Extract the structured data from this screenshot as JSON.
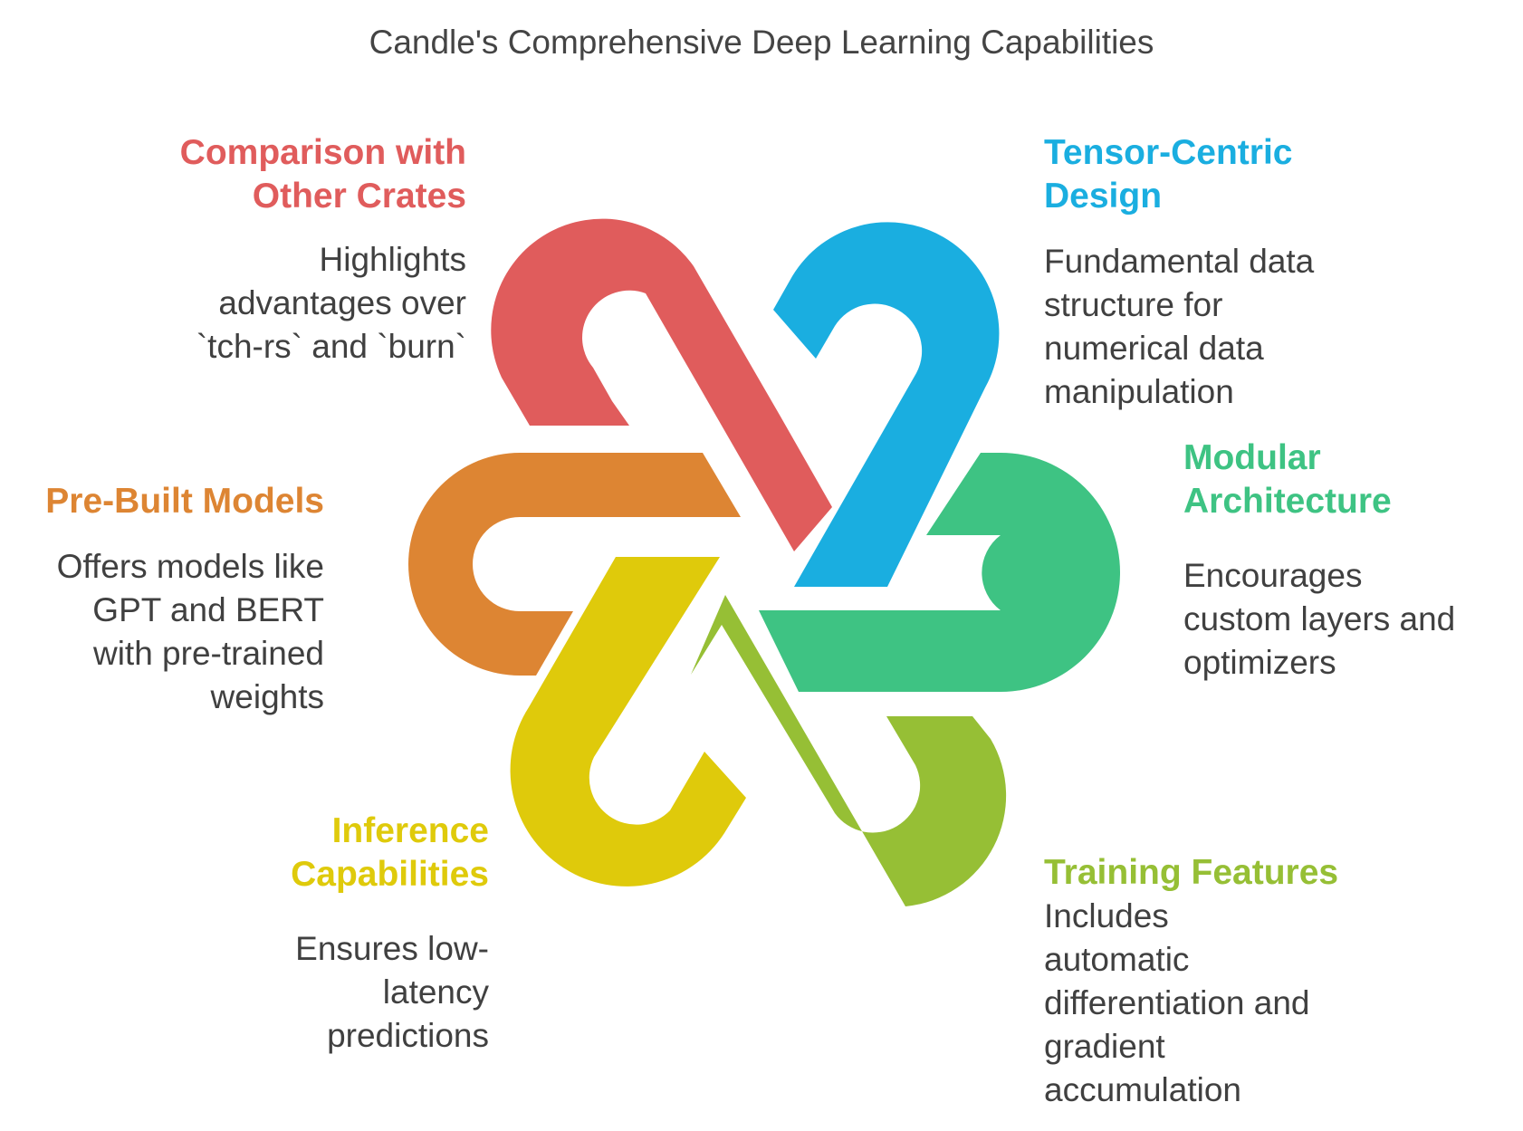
{
  "title": "Candle's Comprehensive Deep Learning Capabilities",
  "colors": {
    "red": "#e05c5c",
    "blue": "#1aaee0",
    "green": "#3ec383",
    "lime": "#96bf35",
    "yellow": "#dfca0b",
    "orange": "#dd8533"
  },
  "items": {
    "comparison": {
      "heading_line1": "Comparison with",
      "heading_line2": "Other Crates",
      "desc_line1": "Highlights",
      "desc_line2": "advantages over",
      "desc_line3": "`tch-rs` and `burn`"
    },
    "tensor": {
      "heading_line1": "Tensor-Centric",
      "heading_line2": "Design",
      "desc_line1": "Fundamental data",
      "desc_line2": "structure for",
      "desc_line3": "numerical data",
      "desc_line4": "manipulation"
    },
    "modular": {
      "heading_line1": "Modular",
      "heading_line2": "Architecture",
      "desc_line1": "Encourages",
      "desc_line2": "custom layers and",
      "desc_line3": "optimizers"
    },
    "prebuilt": {
      "heading_line1": "Pre-Built Models",
      "desc_line1": "Offers models like",
      "desc_line2": "GPT and BERT",
      "desc_line3": "with pre-trained",
      "desc_line4": "weights"
    },
    "inference": {
      "heading_line1": "Inference",
      "heading_line2": "Capabilities",
      "desc_line1": "Ensures low-",
      "desc_line2": "latency",
      "desc_line3": "predictions"
    },
    "training": {
      "heading_line1": "Training Features",
      "desc_line1": "Includes",
      "desc_line2": "automatic",
      "desc_line3": "differentiation and",
      "desc_line4": "gradient",
      "desc_line5": "accumulation"
    }
  }
}
